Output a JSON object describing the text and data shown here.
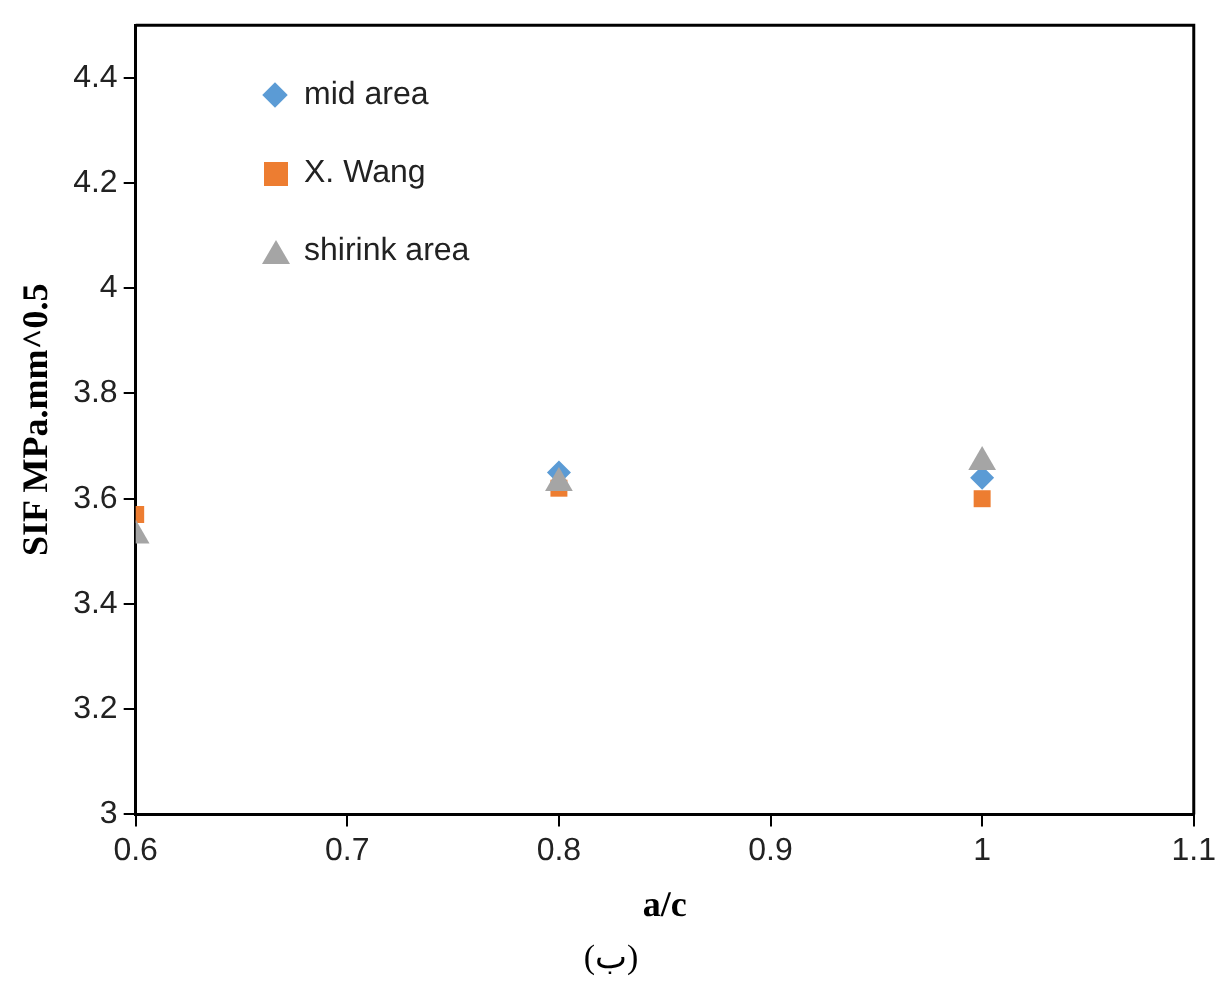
{
  "chart_data": {
    "type": "scatter",
    "xlabel": "a/c",
    "ylabel": "SIF MPa.mm^0.5",
    "annotations": [
      "(ب)"
    ],
    "x": [
      0.6,
      0.8,
      1.0
    ],
    "series": [
      {
        "name": "mid area",
        "color": "#5b9bd5",
        "marker": "diamond",
        "values": [
          null,
          3.65,
          3.64
        ]
      },
      {
        "name": "X. Wang",
        "color": "#ed7d31",
        "marker": "square",
        "values": [
          3.57,
          3.62,
          3.6
        ]
      },
      {
        "name": "shirink area",
        "color": "#a5a5a5",
        "marker": "triangle",
        "values": [
          3.53,
          3.63,
          3.67
        ]
      }
    ],
    "xlim": [
      0.6,
      1.1
    ],
    "xticks": [
      0.6,
      0.7,
      0.8,
      0.9,
      1,
      1.1
    ],
    "ylim": [
      3,
      4.5
    ],
    "yticks": [
      3,
      3.2,
      3.4,
      3.6,
      3.8,
      4,
      4.2,
      4.4
    ],
    "grid": false,
    "legend": "top left"
  }
}
